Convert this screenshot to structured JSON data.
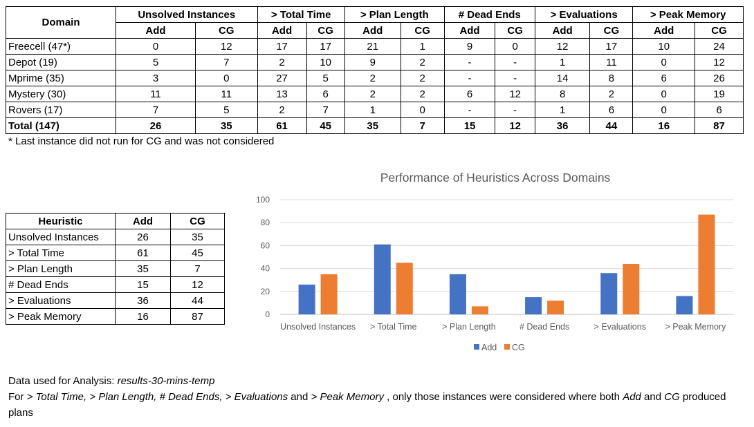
{
  "main_table": {
    "headers": {
      "domain": "Domain",
      "groups": [
        "Unsolved Instances",
        "> Total Time",
        "> Plan Length",
        "# Dead Ends",
        "> Evaluations",
        "> Peak Memory"
      ],
      "sub": [
        "Add",
        "CG"
      ]
    },
    "rows": [
      {
        "domain": "Freecell (47*)",
        "values": [
          "0",
          "12",
          "17",
          "17",
          "21",
          "1",
          "9",
          "0",
          "12",
          "17",
          "10",
          "24"
        ]
      },
      {
        "domain": "Depot (19)",
        "values": [
          "5",
          "7",
          "2",
          "10",
          "9",
          "2",
          "-",
          "-",
          "1",
          "11",
          "0",
          "12"
        ]
      },
      {
        "domain": "Mprime (35)",
        "values": [
          "3",
          "0",
          "27",
          "5",
          "2",
          "2",
          "-",
          "-",
          "14",
          "8",
          "6",
          "26"
        ]
      },
      {
        "domain": "Mystery (30)",
        "values": [
          "11",
          "11",
          "13",
          "6",
          "2",
          "2",
          "6",
          "12",
          "8",
          "2",
          "0",
          "19"
        ]
      },
      {
        "domain": "Rovers (17)",
        "values": [
          "7",
          "5",
          "2",
          "7",
          "1",
          "0",
          "-",
          "-",
          "1",
          "6",
          "0",
          "6"
        ]
      }
    ],
    "total": {
      "domain": "Total (147)",
      "values": [
        "26",
        "35",
        "61",
        "45",
        "35",
        "7",
        "15",
        "12",
        "36",
        "44",
        "16",
        "87"
      ]
    }
  },
  "footnote": "* Last instance did not run for CG and was not considered",
  "summary_table": {
    "headers": [
      "Heuristic",
      "Add",
      "CG"
    ],
    "rows": [
      [
        "Unsolved Instances",
        "26",
        "35"
      ],
      [
        "> Total Time",
        "61",
        "45"
      ],
      [
        "> Plan Length",
        "35",
        "7"
      ],
      [
        "# Dead Ends",
        "15",
        "12"
      ],
      [
        "> Evaluations",
        "36",
        "44"
      ],
      [
        "> Peak Memory",
        "16",
        "87"
      ]
    ]
  },
  "chart_data": {
    "type": "bar",
    "title": "Performance of Heuristics Across Domains",
    "categories": [
      "Unsolved Instances",
      "> Total Time",
      "> Plan Length",
      "# Dead Ends",
      "> Evaluations",
      "> Peak Memory"
    ],
    "series": [
      {
        "name": "Add",
        "values": [
          26,
          61,
          35,
          15,
          36,
          16
        ],
        "color": "#4472C4"
      },
      {
        "name": "CG",
        "values": [
          35,
          45,
          7,
          12,
          44,
          87
        ],
        "color": "#ED7D31"
      }
    ],
    "ylim": [
      0,
      100
    ],
    "yticks": [
      0,
      20,
      40,
      60,
      80,
      100
    ],
    "grid": true,
    "legend": "bottom",
    "xlabel": "",
    "ylabel": ""
  },
  "notes": {
    "data_label": "Data used for Analysis: ",
    "data_source": "results-30-mins-temp",
    "line2_prefix": "For ",
    "line2_metrics": "> Total Time, > Plan Length, # Dead Ends, > Evaluations",
    "line2_and": " and ",
    "line2_last": "> Peak Memory",
    "line2_mid": " , only those instances were considered where both ",
    "line2_add": "Add",
    "line2_and2": " and ",
    "line2_cg": "CG",
    "line2_suffix": " produced plans"
  }
}
